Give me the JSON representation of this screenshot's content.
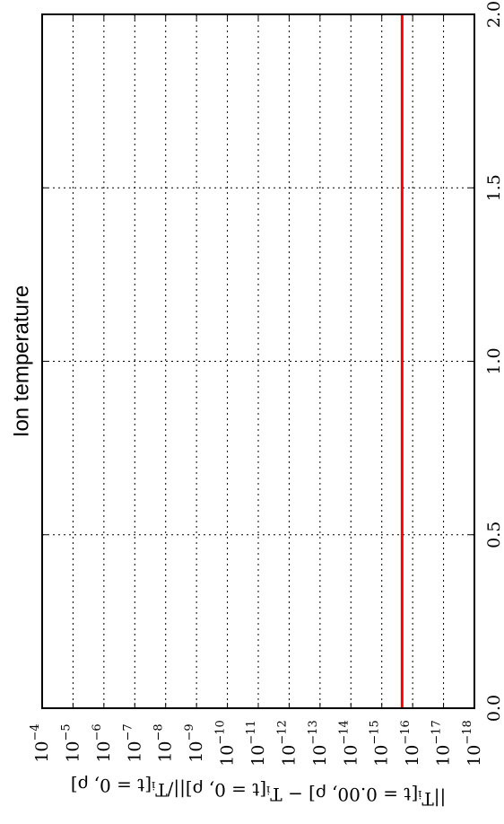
{
  "chart_data": {
    "type": "line",
    "title": "Ion temperature",
    "orientation": "rotated-90",
    "x_axis": {
      "label": "",
      "range": [
        0.0,
        2.0
      ],
      "ticks": [
        0.0,
        0.5,
        1.0,
        1.5,
        2.0
      ],
      "tick_labels": [
        "0.0",
        "0.5",
        "1.0",
        "1.5",
        "2.0"
      ]
    },
    "y_axis": {
      "label": "||T_i[t = 0.00, ρ] − T_i[t = 0, ρ]||/T_i[t = 0, ρ]",
      "label_parts": {
        "base": "||T",
        "sub": "i",
        "rest": "[t = 0.00, ρ] − T",
        "sub2": "i",
        "rest2": "[t = 0, ρ]||/T",
        "sub3": "i",
        "rest3": "[t = 0, ρ]"
      },
      "scale": "log",
      "range": [
        1e-18,
        0.0001
      ],
      "ticks": [
        0.0001,
        1e-05,
        1e-06,
        1e-07,
        1e-08,
        1e-09,
        1e-10,
        1e-11,
        1e-12,
        1e-13,
        1e-14,
        1e-15,
        1e-16,
        1e-17,
        1e-18
      ],
      "tick_base": "10",
      "tick_exponents": [
        "−4",
        "−5",
        "−6",
        "−7",
        "−8",
        "−9",
        "−10",
        "−11",
        "−12",
        "−13",
        "−14",
        "−15",
        "−16",
        "−17",
        "−18"
      ]
    },
    "grid": true,
    "series": [
      {
        "color": "#ff0000",
        "x": [
          0.0,
          2.0
        ],
        "y": [
          2.2e-16,
          2.2e-16
        ]
      }
    ]
  }
}
